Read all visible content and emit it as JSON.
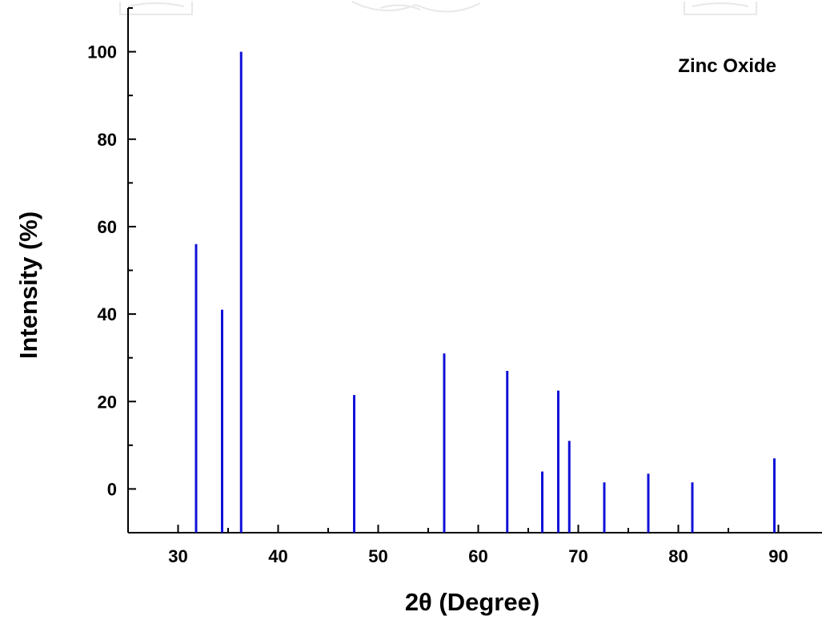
{
  "chart_data": {
    "type": "bar",
    "annotation": "Zinc Oxide",
    "xlabel": "2θ (Degree)",
    "ylabel": "Intensity (%)",
    "xlim": [
      25,
      95
    ],
    "ylim": [
      -10,
      110
    ],
    "xticks": [
      30,
      40,
      50,
      60,
      70,
      80,
      90
    ],
    "yticks": [
      0,
      20,
      40,
      60,
      80,
      100
    ],
    "grid": false,
    "legend": "none",
    "bar_color": "#1010d8",
    "points": [
      {
        "x": 31.8,
        "y": 56
      },
      {
        "x": 34.4,
        "y": 41
      },
      {
        "x": 36.3,
        "y": 100
      },
      {
        "x": 47.6,
        "y": 21.5
      },
      {
        "x": 56.6,
        "y": 31
      },
      {
        "x": 62.9,
        "y": 27
      },
      {
        "x": 66.4,
        "y": 4
      },
      {
        "x": 68.0,
        "y": 22.5
      },
      {
        "x": 69.1,
        "y": 11
      },
      {
        "x": 72.6,
        "y": 1.5
      },
      {
        "x": 77.0,
        "y": 3.5
      },
      {
        "x": 81.4,
        "y": 1.5
      },
      {
        "x": 89.6,
        "y": 7
      }
    ]
  }
}
